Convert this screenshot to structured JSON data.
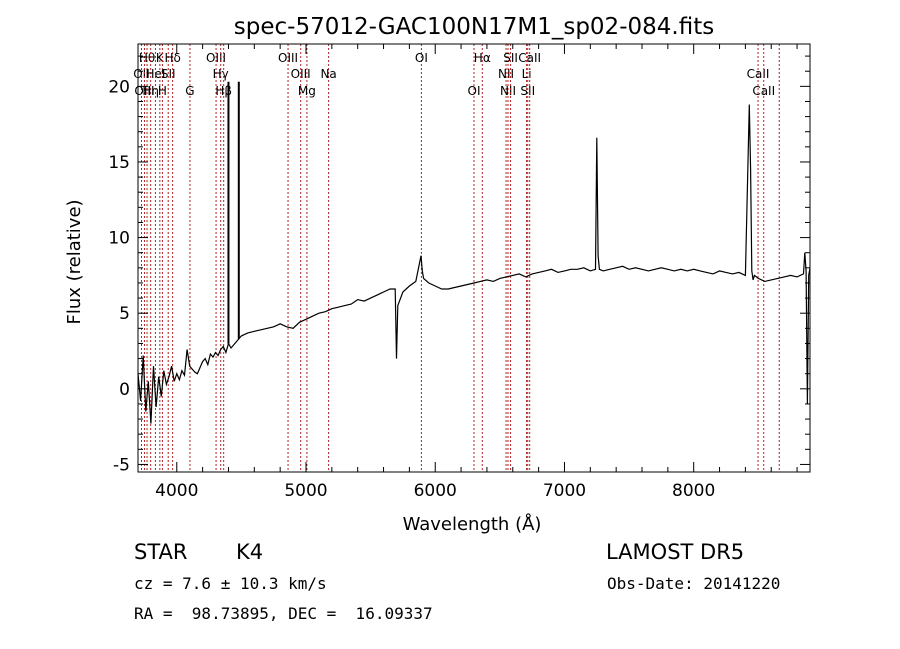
{
  "chart_data": {
    "type": "line",
    "title": "spec-57012-GAC100N17M1_sp02-084.fits",
    "xlabel": "Wavelength (Å)",
    "ylabel": "Flux (relative)",
    "xlim": [
      3700,
      8900
    ],
    "ylim": [
      -5.5,
      22.8
    ],
    "xticks": [
      4000,
      5000,
      6000,
      7000,
      8000
    ],
    "yticks": [
      -5,
      0,
      5,
      10,
      15,
      20
    ],
    "grid": false,
    "line_color": "#000000",
    "marker_color": "#b22222",
    "series": [
      {
        "x": [
          3700,
          3720,
          3740,
          3760,
          3780,
          3800,
          3820,
          3840,
          3860,
          3880,
          3900,
          3920,
          3940,
          3960,
          3980,
          4000,
          4020,
          4040,
          4060,
          4080,
          4100,
          4120,
          4140,
          4160,
          4180,
          4200,
          4220,
          4240,
          4260,
          4280,
          4300,
          4320,
          4340,
          4360,
          4380,
          4400,
          4420,
          4440,
          4460,
          4480,
          4500,
          4550,
          4600,
          4650,
          4700,
          4750,
          4800,
          4850,
          4900,
          4950,
          5000,
          5050,
          5100,
          5150,
          5200,
          5250,
          5300,
          5350,
          5400,
          5450,
          5500,
          5550,
          5600,
          5650,
          5690,
          5700,
          5710,
          5750,
          5800,
          5850,
          5890,
          5900,
          5910,
          5950,
          6000,
          6050,
          6100,
          6150,
          6200,
          6250,
          6300,
          6350,
          6400,
          6450,
          6500,
          6550,
          6600,
          6650,
          6700,
          6750,
          6800,
          6850,
          6900,
          6950,
          7000,
          7050,
          7100,
          7150,
          7200,
          7240,
          7250,
          7260,
          7270,
          7300,
          7350,
          7400,
          7450,
          7500,
          7550,
          7600,
          7650,
          7700,
          7750,
          7800,
          7850,
          7900,
          7950,
          8000,
          8050,
          8100,
          8150,
          8200,
          8250,
          8300,
          8350,
          8400,
          8430,
          8440,
          8450,
          8460,
          8470,
          8500,
          8550,
          8600,
          8650,
          8700,
          8750,
          8800,
          8850,
          8860,
          8870,
          8880,
          8890,
          8900
        ],
        "y": [
          1.0,
          -0.8,
          2.2,
          -1.5,
          0.5,
          -2.3,
          1.5,
          -1.2,
          0.8,
          -0.5,
          1.2,
          0.3,
          0.8,
          1.5,
          0.5,
          1.0,
          0.6,
          1.2,
          0.9,
          2.6,
          1.5,
          1.3,
          1.1,
          1.0,
          1.4,
          1.8,
          2.0,
          1.6,
          2.3,
          2.1,
          2.4,
          2.2,
          2.6,
          2.8,
          2.4,
          3.0,
          2.7,
          2.9,
          3.1,
          3.3,
          3.5,
          3.7,
          3.8,
          3.9,
          4.0,
          4.1,
          4.3,
          4.1,
          4.0,
          4.4,
          4.6,
          4.8,
          5.0,
          5.1,
          5.3,
          5.4,
          5.5,
          5.6,
          5.9,
          5.8,
          6.0,
          6.2,
          6.4,
          6.6,
          6.6,
          2.0,
          5.5,
          6.4,
          6.8,
          7.1,
          8.8,
          7.8,
          7.3,
          7.0,
          6.8,
          6.6,
          6.6,
          6.7,
          6.8,
          6.9,
          7.0,
          7.1,
          7.2,
          7.1,
          7.3,
          7.4,
          7.5,
          7.6,
          7.4,
          7.6,
          7.7,
          7.8,
          7.9,
          7.7,
          7.8,
          7.9,
          7.9,
          8.0,
          7.8,
          7.9,
          16.6,
          8.8,
          7.9,
          7.8,
          7.9,
          8.0,
          8.1,
          7.9,
          8.0,
          7.9,
          7.8,
          7.9,
          8.0,
          7.9,
          7.8,
          7.9,
          7.8,
          7.9,
          7.8,
          7.7,
          7.6,
          7.8,
          7.7,
          7.6,
          7.7,
          7.5,
          18.8,
          14.5,
          7.8,
          7.2,
          7.5,
          7.3,
          7.1,
          7.2,
          7.3,
          7.4,
          7.5,
          7.4,
          7.6,
          9.0,
          7.8,
          -1.0,
          7.5,
          8.0
        ]
      }
    ],
    "spikes": [
      {
        "x": 4400,
        "y_from": 3.0,
        "y_to": 20.3
      },
      {
        "x": 4480,
        "y_from": 3.3,
        "y_to": 20.3
      }
    ],
    "line_markers": [
      {
        "x": 3727,
        "label": "OII",
        "row": 2
      },
      {
        "x": 3750,
        "label": "OIII",
        "row": 3
      },
      {
        "x": 3770,
        "label": "Hθ",
        "row": 1
      },
      {
        "x": 3798,
        "label": "Hη",
        "row": 3
      },
      {
        "x": 3835,
        "label": "HeI",
        "row": 2
      },
      {
        "x": 3869,
        "label": "K",
        "row": 1
      },
      {
        "x": 3889,
        "label": "H",
        "row": 3
      },
      {
        "x": 3934,
        "label": "SII",
        "row": 2
      },
      {
        "x": 3968,
        "label": "Hδ",
        "row": 1
      },
      {
        "x": 4102,
        "label": "G",
        "row": 3
      },
      {
        "x": 4304,
        "label": "OIII",
        "row": 1
      },
      {
        "x": 4340,
        "label": "Hγ",
        "row": 2
      },
      {
        "x": 4363,
        "label": "Hβ",
        "row": 3
      },
      {
        "x": 4861,
        "label": "OIII",
        "row": 1
      },
      {
        "x": 4959,
        "label": "OIII",
        "row": 2
      },
      {
        "x": 5007,
        "label": "Mg",
        "row": 3
      },
      {
        "x": 5175,
        "label": "Na",
        "row": 2
      },
      {
        "x": 5893,
        "label": "OI",
        "row": 1
      },
      {
        "x": 6300,
        "label": "OI",
        "row": 3
      },
      {
        "x": 6364,
        "label": "Hα",
        "row": 1
      },
      {
        "x": 6548,
        "label": "NII",
        "row": 2
      },
      {
        "x": 6563,
        "label": "NII",
        "row": 3
      },
      {
        "x": 6583,
        "label": "SII",
        "row": 1
      },
      {
        "x": 6707,
        "label": "Li",
        "row": 2
      },
      {
        "x": 6716,
        "label": "SII",
        "row": 3
      },
      {
        "x": 6731,
        "label": "CaII",
        "row": 1
      },
      {
        "x": 8498,
        "label": "CaII",
        "row": 2
      },
      {
        "x": 8542,
        "label": "CaII",
        "row": 3
      },
      {
        "x": 8662,
        "label": "",
        "row": 0
      }
    ]
  },
  "info": {
    "object_class": "STAR",
    "subclass": "K4",
    "survey": "LAMOST DR5",
    "redshift_line": "cz = 7.6 ± 10.3 km/s",
    "obs_date_line": "Obs-Date: 20141220",
    "coords_line": "RA =  98.73895, DEC =  16.09337"
  }
}
